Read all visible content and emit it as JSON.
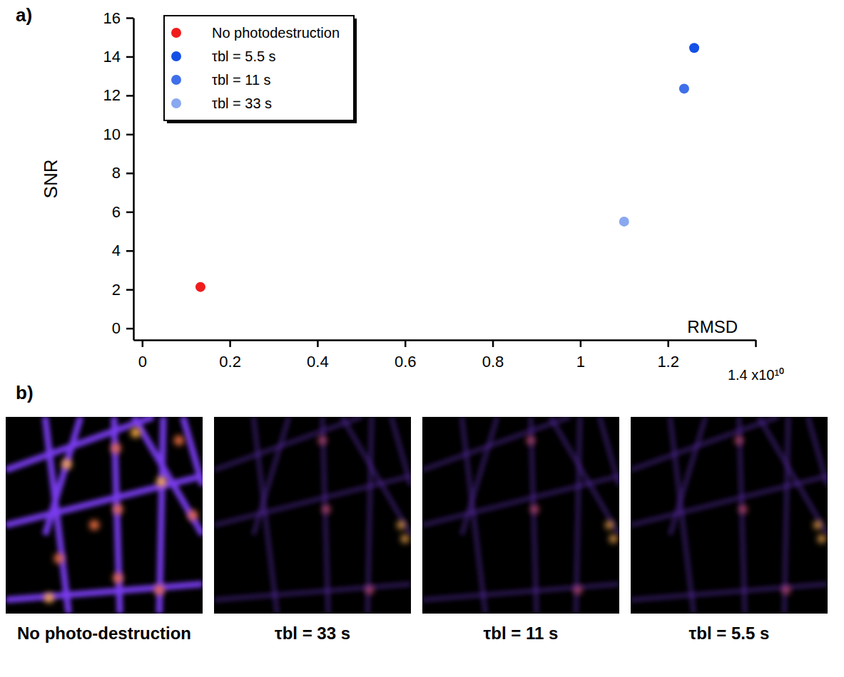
{
  "chart_data": {
    "type": "scatter",
    "panel_label": "a)",
    "x_label": "RMSD",
    "y_label": "SNR",
    "xlim": [
      -0.02,
      1.4
    ],
    "xticks": [
      0,
      0.2,
      0.4,
      0.6,
      0.8,
      1,
      1.2,
      {
        "value": 1.4,
        "label": "1.4 x10¹⁰"
      }
    ],
    "ylim": [
      -0.6,
      16
    ],
    "yticks": [
      0,
      2,
      4,
      6,
      8,
      10,
      12,
      14,
      16
    ],
    "legend": "upper-left",
    "marker": "circle",
    "series": [
      {
        "name": "No photodestruction",
        "color": "#f01c1c",
        "x": [
          0.133
        ],
        "values": [
          2.13
        ]
      },
      {
        "name": "τbl = 5.5 s",
        "color": "#1450e6",
        "x": [
          1.26
        ],
        "values": [
          14.45
        ]
      },
      {
        "name": "τbl = 11 s",
        "color": "#3f70ea",
        "x": [
          1.237
        ],
        "values": [
          12.35
        ]
      },
      {
        "name": "τbl = 33 s",
        "color": "#8aa8f0",
        "x": [
          1.1
        ],
        "values": [
          5.5
        ]
      }
    ]
  },
  "images": {
    "panel_label": "b)",
    "captions": [
      "No photo-destruction",
      "τbl = 33 s",
      "τbl = 11 s",
      "τbl = 5.5 s"
    ]
  }
}
